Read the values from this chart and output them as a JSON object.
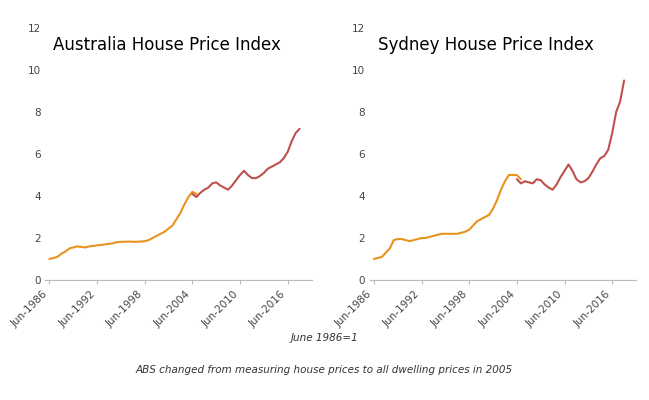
{
  "title_left": "Australia House Price Index",
  "title_right": "Sydney House Price Index",
  "footnote1": "June 1986=1",
  "footnote2": "ABS changed from measuring house prices to all dwelling prices in 2005",
  "xlim": [
    1986.0,
    2019.5
  ],
  "ylim": [
    0,
    12
  ],
  "yticks": [
    0,
    2,
    4,
    6,
    8,
    10,
    12
  ],
  "xtick_labels": [
    "Jun-1986",
    "Jun-1992",
    "Jun-1998",
    "Jun-2004",
    "Jun-2010",
    "Jun-2016"
  ],
  "xtick_positions": [
    1986.5,
    1992.5,
    1998.5,
    2004.5,
    2010.5,
    2016.5
  ],
  "color_orange": "#E8931D",
  "color_red": "#C0504D",
  "background": "#FFFFFF",
  "aus_orange": {
    "x": [
      1986.5,
      1987.0,
      1987.5,
      1988.0,
      1988.5,
      1989.0,
      1989.5,
      1990.0,
      1990.5,
      1991.0,
      1991.5,
      1992.0,
      1992.5,
      1993.0,
      1993.5,
      1994.0,
      1994.5,
      1995.0,
      1995.5,
      1996.0,
      1996.5,
      1997.0,
      1997.5,
      1998.0,
      1998.5,
      1999.0,
      1999.5,
      2000.0,
      2000.5,
      2001.0,
      2001.5,
      2002.0,
      2002.5,
      2003.0,
      2003.5,
      2004.0,
      2004.5,
      2005.0
    ],
    "y": [
      1.0,
      1.05,
      1.1,
      1.25,
      1.35,
      1.5,
      1.55,
      1.6,
      1.58,
      1.55,
      1.6,
      1.62,
      1.65,
      1.67,
      1.7,
      1.72,
      1.75,
      1.8,
      1.82,
      1.82,
      1.83,
      1.82,
      1.82,
      1.83,
      1.85,
      1.9,
      2.0,
      2.1,
      2.2,
      2.3,
      2.45,
      2.6,
      2.9,
      3.2,
      3.6,
      3.95,
      4.2,
      4.1
    ]
  },
  "aus_red": {
    "x": [
      2004.5,
      2005.0,
      2005.5,
      2006.0,
      2006.5,
      2007.0,
      2007.5,
      2008.0,
      2008.5,
      2009.0,
      2009.5,
      2010.0,
      2010.5,
      2011.0,
      2011.5,
      2012.0,
      2012.5,
      2013.0,
      2013.5,
      2014.0,
      2014.5,
      2015.0,
      2015.5,
      2016.0,
      2016.5,
      2017.0,
      2017.5,
      2018.0
    ],
    "y": [
      4.1,
      3.95,
      4.15,
      4.3,
      4.4,
      4.6,
      4.65,
      4.5,
      4.4,
      4.3,
      4.5,
      4.75,
      5.0,
      5.2,
      5.0,
      4.85,
      4.85,
      4.95,
      5.1,
      5.3,
      5.4,
      5.5,
      5.6,
      5.8,
      6.1,
      6.6,
      7.0,
      7.2
    ]
  },
  "syd_orange": {
    "x": [
      1986.5,
      1987.0,
      1987.5,
      1988.0,
      1988.5,
      1989.0,
      1989.5,
      1990.0,
      1990.5,
      1991.0,
      1991.5,
      1992.0,
      1992.5,
      1993.0,
      1993.5,
      1994.0,
      1994.5,
      1995.0,
      1995.5,
      1996.0,
      1996.5,
      1997.0,
      1997.5,
      1998.0,
      1998.5,
      1999.0,
      1999.5,
      2000.0,
      2000.5,
      2001.0,
      2001.5,
      2002.0,
      2002.5,
      2003.0,
      2003.5,
      2004.0,
      2004.5,
      2005.0
    ],
    "y": [
      1.0,
      1.05,
      1.1,
      1.3,
      1.5,
      1.9,
      1.95,
      1.95,
      1.9,
      1.85,
      1.9,
      1.95,
      2.0,
      2.0,
      2.05,
      2.1,
      2.15,
      2.2,
      2.2,
      2.2,
      2.2,
      2.2,
      2.25,
      2.3,
      2.4,
      2.6,
      2.8,
      2.9,
      3.0,
      3.1,
      3.4,
      3.8,
      4.3,
      4.7,
      5.0,
      5.0,
      5.0,
      4.8
    ]
  },
  "syd_red": {
    "x": [
      2004.5,
      2005.0,
      2005.5,
      2006.0,
      2006.5,
      2007.0,
      2007.5,
      2008.0,
      2008.5,
      2009.0,
      2009.5,
      2010.0,
      2010.5,
      2011.0,
      2011.5,
      2012.0,
      2012.5,
      2013.0,
      2013.5,
      2014.0,
      2014.5,
      2015.0,
      2015.5,
      2016.0,
      2016.5,
      2017.0,
      2017.5,
      2018.0
    ],
    "y": [
      4.8,
      4.6,
      4.7,
      4.65,
      4.6,
      4.8,
      4.75,
      4.55,
      4.4,
      4.3,
      4.55,
      4.9,
      5.2,
      5.5,
      5.2,
      4.8,
      4.65,
      4.7,
      4.85,
      5.15,
      5.5,
      5.8,
      5.9,
      6.2,
      7.0,
      8.0,
      8.5,
      9.5
    ]
  },
  "title_fontsize": 12,
  "footnote_fontsize": 7.5,
  "tick_fontsize": 7.5,
  "linewidth": 1.5
}
